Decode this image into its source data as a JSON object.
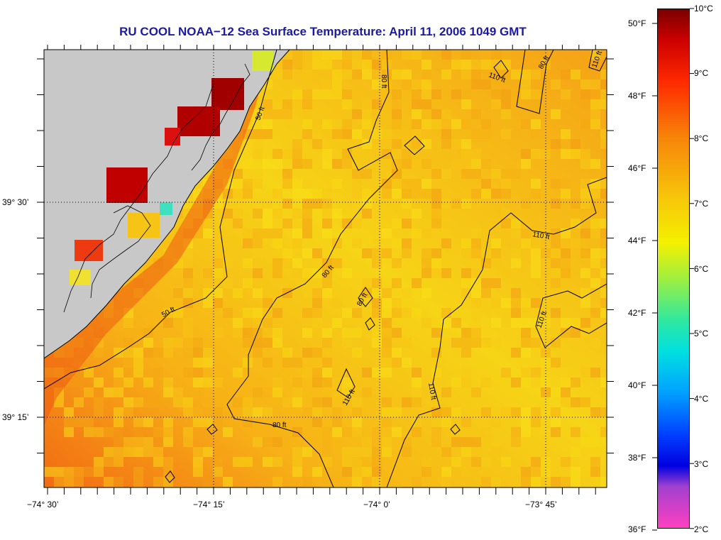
{
  "title": "RU COOL  NOAA−12  Sea Surface Temperature:  April 11, 2006 1049 GMT",
  "map": {
    "lon_ticks": [
      "−74° 30’",
      "−74° 15’",
      "−74° 0’",
      "−73° 45’"
    ],
    "lat_ticks": [
      "39° 30’",
      "39° 15’"
    ],
    "contour_labels": [
      {
        "text": "50 ft",
        "name": "contour-label-50ft-north"
      },
      {
        "text": "50 ft",
        "name": "contour-label-50ft-south"
      },
      {
        "text": "80 ft",
        "name": "contour-label-80ft-north"
      },
      {
        "text": "80 ft",
        "name": "contour-label-80ft-middle"
      },
      {
        "text": "80 ft",
        "name": "contour-label-80ft-small"
      },
      {
        "text": "80 ft",
        "name": "contour-label-80ft-south"
      },
      {
        "text": "80 ft",
        "name": "contour-label-80ft-ne"
      },
      {
        "text": "110 ft",
        "name": "contour-label-110ft-top"
      },
      {
        "text": "110 ft",
        "name": "contour-label-110ft-corner"
      },
      {
        "text": "110 ft",
        "name": "contour-label-110ft-east"
      },
      {
        "text": "110 ft",
        "name": "contour-label-110ft-se"
      },
      {
        "text": "110 ft",
        "name": "contour-label-110ft-south"
      },
      {
        "text": "110 ft",
        "name": "contour-label-110ft-sw"
      }
    ],
    "land_color": "#c8c8c8"
  },
  "colorbar": {
    "fahrenheit": [
      "50°F",
      "48°F",
      "46°F",
      "44°F",
      "42°F",
      "40°F",
      "38°F",
      "36°F"
    ],
    "celsius": [
      "10°C",
      "9°C",
      "8°C",
      "7°C",
      "6°C",
      "5°C",
      "4°C",
      "3°C",
      "2°C"
    ]
  }
}
